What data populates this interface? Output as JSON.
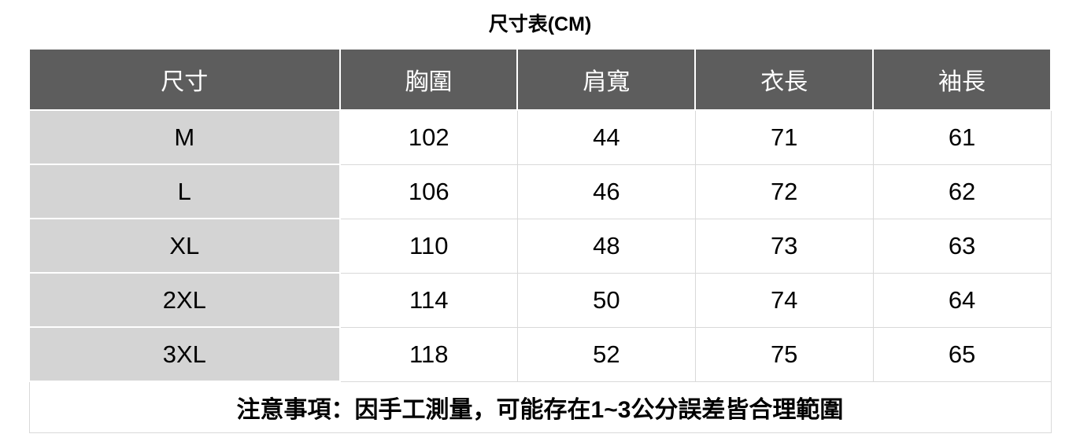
{
  "chart_data": {
    "type": "table",
    "title": "尺寸表(CM)",
    "unit": "CM",
    "columns": [
      "尺寸",
      "胸圍",
      "肩寬",
      "衣長",
      "袖長"
    ],
    "rows": [
      [
        "M",
        "102",
        "44",
        "71",
        "61"
      ],
      [
        "L",
        "106",
        "46",
        "72",
        "62"
      ],
      [
        "XL",
        "110",
        "48",
        "73",
        "63"
      ],
      [
        "2XL",
        "114",
        "50",
        "74",
        "64"
      ],
      [
        "3XL",
        "118",
        "52",
        "75",
        "65"
      ]
    ],
    "note": "注意事項：因手工測量，可能存在1~3公分誤差皆合理範圍"
  },
  "colors": {
    "header_bg": "#5d5d5d",
    "header_text": "#ffffff",
    "size_column_bg": "#d4d4d4",
    "grid_line": "#d9d9d9",
    "body_text": "#000000",
    "background": "#ffffff"
  }
}
